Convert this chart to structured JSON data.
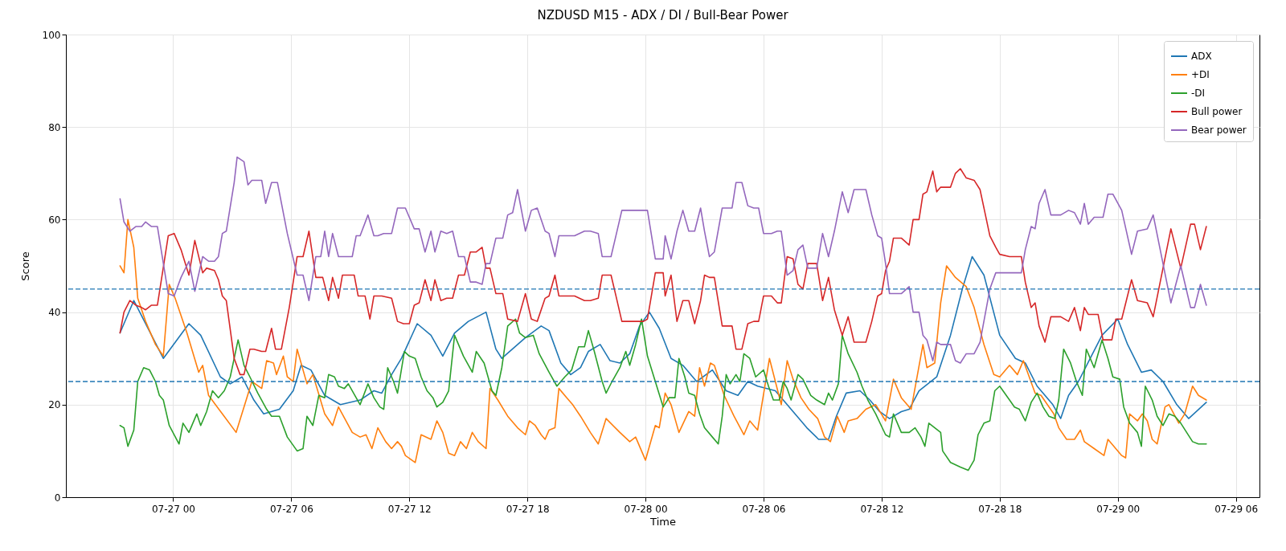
{
  "chart_data": {
    "type": "line",
    "title": "NZDUSD M15 - ADX / DI / Bull-Bear Power",
    "xlabel": "Time",
    "ylabel": "Score",
    "legend": "top right",
    "grid": true,
    "xlim": [
      "--07-26T18:33",
      "--07-29T07:12"
    ],
    "ylim": [
      0,
      100
    ],
    "yticks": [
      0,
      20,
      40,
      60,
      80,
      100
    ],
    "xticks": [
      {
        "value": "--07-27T00:00",
        "label": "07-27 00"
      },
      {
        "value": "--07-27T06:00",
        "label": "07-27 06"
      },
      {
        "value": "--07-27T12:00",
        "label": "07-27 12"
      },
      {
        "value": "--07-27T18:00",
        "label": "07-27 18"
      },
      {
        "value": "--07-28T00:00",
        "label": "07-28 00"
      },
      {
        "value": "--07-28T06:00",
        "label": "07-28 06"
      },
      {
        "value": "--07-28T12:00",
        "label": "07-28 12"
      },
      {
        "value": "--07-28T18:00",
        "label": "07-28 18"
      },
      {
        "value": "--07-29T00:00",
        "label": "07-29 00"
      },
      {
        "value": "--07-29T06:00",
        "label": "07-29 06"
      }
    ],
    "ref_lines": [
      {
        "axis": "y",
        "value": 45,
        "color": "#1f77b4",
        "line_style": "dashed"
      },
      {
        "axis": "y",
        "value": 25,
        "color": "#1f77b4",
        "line_style": "dashed"
      }
    ],
    "series": [
      {
        "name": "ADX",
        "color": "#1f77b4",
        "x": [
          "--07-26T21:18",
          "--07-26T22:00",
          "--07-26T23:30",
          "--07-27T00:48",
          "--07-27T01:24",
          "--07-27T02:24",
          "--07-27T02:54",
          "--07-27T03:30",
          "--07-27T04:06",
          "--07-27T04:36",
          "--07-27T05:24",
          "--07-27T06:06",
          "--07-27T06:30",
          "--07-27T07:00",
          "--07-27T07:42",
          "--07-27T08:30",
          "--07-27T09:30",
          "--07-27T10:12",
          "--07-27T10:36",
          "--07-27T11:06",
          "--07-27T11:36",
          "--07-27T12:24",
          "--07-27T13:06",
          "--07-27T13:42",
          "--07-27T14:18",
          "--07-27T15:00",
          "--07-27T15:54",
          "--07-27T16:24",
          "--07-27T16:42",
          "--07-27T17:54",
          "--07-27T18:42",
          "--07-27T19:06",
          "--07-27T19:42",
          "--07-27T20:12",
          "--07-27T20:42",
          "--07-27T21:06",
          "--07-27T21:42",
          "--07-27T22:12",
          "--07-27T22:42",
          "--07-27T23:12",
          "--07-27T23:42",
          "--07-28T00:12",
          "--07-28T00:42",
          "--07-28T01:18",
          "--07-28T01:54",
          "--07-28T02:36",
          "--07-28T03:24",
          "--07-28T04:06",
          "--07-28T04:42",
          "--07-28T05:12",
          "--07-28T05:42",
          "--07-28T06:36",
          "--07-28T07:12",
          "--07-28T07:48",
          "--07-28T08:12",
          "--07-28T08:48",
          "--07-28T09:18",
          "--07-28T09:42",
          "--07-28T10:12",
          "--07-28T10:54",
          "--07-28T11:24",
          "--07-28T11:54",
          "--07-28T12:24",
          "--07-28T13:00",
          "--07-28T13:24",
          "--07-28T13:54",
          "--07-28T14:48",
          "--07-28T15:30",
          "--07-28T16:06",
          "--07-28T16:36",
          "--07-28T17:12",
          "--07-28T18:00",
          "--07-28T18:48",
          "--07-28T19:18",
          "--07-28T19:54",
          "--07-28T20:42",
          "--07-28T21:06",
          "--07-28T21:30",
          "--07-28T22:00",
          "--07-28T22:36",
          "--07-28T23:12",
          "--07-29T00:00",
          "--07-29T00:30",
          "--07-29T01:12",
          "--07-29T01:42",
          "--07-29T02:18",
          "--07-29T03:00",
          "--07-29T03:36",
          "--07-29T04:30"
        ],
        "values": [
          35.5,
          42.5,
          30,
          37.5,
          35,
          26,
          24.5,
          26,
          21,
          18,
          19,
          23,
          28.5,
          27.5,
          22,
          20,
          21,
          23,
          22.5,
          26.5,
          30,
          37.5,
          35,
          30.5,
          35.5,
          38,
          40,
          32,
          30,
          34.5,
          37,
          36,
          29,
          26.5,
          28,
          31.5,
          33,
          29.5,
          29,
          31,
          37,
          40,
          36.5,
          30,
          28.5,
          25,
          27.5,
          23,
          22,
          25,
          24,
          23,
          20,
          17,
          15,
          12.5,
          12.5,
          17.5,
          22.5,
          23,
          21,
          18.5,
          17,
          18.5,
          19,
          23,
          26,
          35,
          45,
          52,
          48,
          35,
          30,
          29,
          24,
          20,
          17,
          22,
          25,
          30,
          35,
          38.5,
          33,
          27,
          27.5,
          25,
          20,
          17,
          20.5
        ]
      },
      {
        "name": "+DI",
        "color": "#ff7f0e",
        "x": [
          "--07-26T21:18",
          "--07-26T21:30",
          "--07-26T21:42",
          "--07-26T22:00",
          "--07-26T22:12",
          "--07-26T22:36",
          "--07-26T23:06",
          "--07-26T23:30",
          "--07-26T23:48",
          "--07-27T00:06",
          "--07-27T00:42",
          "--07-27T01:18",
          "--07-27T01:30",
          "--07-27T01:48",
          "--07-27T02:30",
          "--07-27T03:12",
          "--07-27T03:36",
          "--07-27T04:00",
          "--07-27T04:30",
          "--07-27T04:45",
          "--07-27T05:06",
          "--07-27T05:15",
          "--07-27T05:36",
          "--07-27T05:48",
          "--07-27T06:06",
          "--07-27T06:18",
          "--07-27T06:48",
          "--07-27T07:06",
          "--07-27T07:42",
          "--07-27T08:06",
          "--07-27T08:24",
          "--07-27T09:06",
          "--07-27T09:30",
          "--07-27T09:48",
          "--07-27T10:06",
          "--07-27T10:24",
          "--07-27T10:48",
          "--07-27T11:06",
          "--07-27T11:24",
          "--07-27T11:36",
          "--07-27T11:48",
          "--07-27T12:18",
          "--07-27T12:36",
          "--07-27T13:06",
          "--07-27T13:24",
          "--07-27T13:42",
          "--07-27T14:00",
          "--07-27T14:18",
          "--07-27T14:36",
          "--07-27T14:54",
          "--07-27T15:12",
          "--07-27T15:30",
          "--07-27T15:54",
          "--07-27T16:06",
          "--07-27T16:30",
          "--07-27T17:00",
          "--07-27T17:30",
          "--07-27T17:54",
          "--07-27T18:06",
          "--07-27T18:24",
          "--07-27T18:42",
          "--07-27T18:54",
          "--07-27T19:06",
          "--07-27T19:24",
          "--07-27T19:36",
          "--07-27T20:00",
          "--07-27T20:18",
          "--07-27T20:42",
          "--07-27T21:12",
          "--07-27T21:36",
          "--07-27T22:00",
          "--07-27T22:42",
          "--07-27T23:12",
          "--07-27T23:30",
          "--07-28T00:00",
          "--07-28T00:30",
          "--07-28T00:42",
          "--07-28T01:00",
          "--07-28T01:18",
          "--07-28T01:42",
          "--07-28T02:12",
          "--07-28T02:30",
          "--07-28T02:45",
          "--07-28T03:00",
          "--07-28T03:18",
          "--07-28T03:30",
          "--07-28T04:00",
          "--07-28T04:30",
          "--07-28T05:00",
          "--07-28T05:18",
          "--07-28T05:42",
          "--07-28T06:18",
          "--07-28T06:36",
          "--07-28T06:54",
          "--07-28T07:12",
          "--07-28T07:30",
          "--07-28T07:54",
          "--07-28T08:18",
          "--07-28T08:45",
          "--07-28T09:06",
          "--07-28T09:24",
          "--07-28T09:45",
          "--07-28T10:06",
          "--07-28T10:18",
          "--07-28T10:45",
          "--07-28T11:12",
          "--07-28T11:42",
          "--07-28T12:12",
          "--07-28T12:36",
          "--07-28T13:00",
          "--07-28T13:30",
          "--07-28T14:06",
          "--07-28T14:18",
          "--07-28T14:42",
          "--07-28T15:00",
          "--07-28T15:18",
          "--07-28T15:45",
          "--07-28T16:18",
          "--07-28T16:42",
          "--07-28T17:12",
          "--07-28T17:42",
          "--07-28T18:00",
          "--07-28T18:30",
          "--07-28T18:54",
          "--07-28T19:12",
          "--07-28T19:48",
          "--07-28T20:06",
          "--07-28T20:45",
          "--07-28T21:00",
          "--07-28T21:24",
          "--07-28T21:48",
          "--07-28T22:06",
          "--07-28T22:18",
          "--07-28T22:48",
          "--07-28T23:18",
          "--07-28T23:30",
          "--07-29T00:12",
          "--07-29T00:24",
          "--07-29T00:36",
          "--07-29T01:00",
          "--07-29T01:15",
          "--07-29T01:30",
          "--07-29T01:45",
          "--07-29T02:00",
          "--07-29T02:24",
          "--07-29T02:36",
          "--07-29T03:06",
          "--07-29T03:24",
          "--07-29T03:48",
          "--07-29T04:06",
          "--07-29T04:30"
        ],
        "values": [
          50,
          48.5,
          60,
          54,
          43,
          38,
          33,
          30.5,
          46,
          43,
          35.5,
          27,
          28.5,
          22,
          18,
          14,
          19.5,
          25,
          23.5,
          29.5,
          29,
          26.5,
          30.5,
          26,
          25,
          32,
          24.5,
          26.5,
          18,
          15.5,
          19.5,
          14,
          13,
          13.5,
          10.5,
          15,
          12,
          10.5,
          12,
          11,
          9,
          7.5,
          13.5,
          12.5,
          16.5,
          14,
          9.5,
          9,
          12,
          10.5,
          14,
          12,
          10.5,
          23.5,
          21,
          17.5,
          15,
          13.5,
          16.5,
          15.5,
          13.5,
          12.5,
          14.5,
          15,
          23.5,
          21.5,
          20,
          17.5,
          14,
          11.5,
          17,
          14,
          12,
          13,
          8,
          15.5,
          15,
          22.5,
          20,
          14,
          18.5,
          17.5,
          28,
          24,
          29,
          28.5,
          22,
          17.5,
          13.5,
          16.5,
          14.5,
          30,
          25,
          20,
          29.5,
          25.5,
          21.5,
          19,
          17,
          13,
          12,
          17.5,
          14,
          16.5,
          17,
          19,
          20,
          16.5,
          25.5,
          21.5,
          19,
          33,
          28,
          29,
          42,
          50,
          47.5,
          45.5,
          41,
          33,
          26.5,
          26,
          28.5,
          26.5,
          29.5,
          22.5,
          22,
          18,
          15,
          12.5,
          12.5,
          14.5,
          12,
          10.5,
          9,
          12.5,
          9,
          8.5,
          18,
          16.5,
          18,
          16.5,
          12.5,
          11.5,
          19.5,
          20,
          16,
          18,
          24,
          22,
          21
        ]
      },
      {
        "name": "-DI",
        "color": "#2ca02c",
        "x": [
          "--07-26T21:18",
          "--07-26T21:30",
          "--07-26T21:42",
          "--07-26T22:00",
          "--07-26T22:12",
          "--07-26T22:30",
          "--07-26T22:48",
          "--07-26T23:06",
          "--07-26T23:18",
          "--07-26T23:30",
          "--07-26T23:48",
          "--07-27T00:18",
          "--07-27T00:30",
          "--07-27T00:48",
          "--07-27T01:12",
          "--07-27T01:24",
          "--07-27T01:42",
          "--07-27T02:00",
          "--07-27T02:18",
          "--07-27T02:36",
          "--07-27T02:54",
          "--07-27T03:18",
          "--07-27T03:36",
          "--07-27T03:54",
          "--07-27T04:18",
          "--07-27T04:45",
          "--07-27T05:00",
          "--07-27T05:24",
          "--07-27T05:48",
          "--07-27T06:18",
          "--07-27T06:36",
          "--07-27T06:48",
          "--07-27T07:06",
          "--07-27T07:24",
          "--07-27T07:42",
          "--07-27T07:54",
          "--07-27T08:12",
          "--07-27T08:24",
          "--07-27T08:42",
          "--07-27T08:54",
          "--07-27T09:30",
          "--07-27T09:54",
          "--07-27T10:12",
          "--07-27T10:30",
          "--07-27T10:42",
          "--07-27T10:54",
          "--07-27T11:12",
          "--07-27T11:24",
          "--07-27T11:45",
          "--07-27T12:00",
          "--07-27T12:18",
          "--07-27T12:36",
          "--07-27T12:54",
          "--07-27T13:12",
          "--07-27T13:24",
          "--07-27T13:42",
          "--07-27T14:00",
          "--07-27T14:18",
          "--07-27T14:45",
          "--07-27T15:12",
          "--07-27T15:24",
          "--07-27T15:48",
          "--07-27T16:00",
          "--07-27T16:12",
          "--07-27T16:24",
          "--07-27T16:42",
          "--07-27T17:00",
          "--07-27T17:24",
          "--07-27T17:36",
          "--07-27T17:54",
          "--07-27T18:18",
          "--07-27T18:36",
          "--07-27T19:06",
          "--07-27T19:30",
          "--07-27T19:54",
          "--07-27T20:15",
          "--07-27T20:36",
          "--07-27T20:54",
          "--07-27T21:06",
          "--07-27T21:24",
          "--07-27T21:48",
          "--07-27T22:00",
          "--07-27T22:18",
          "--07-27T22:42",
          "--07-27T23:00",
          "--07-27T23:12",
          "--07-27T23:30",
          "--07-27T23:48",
          "--07-28T00:06",
          "--07-28T00:30",
          "--07-28T00:54",
          "--07-28T01:12",
          "--07-28T01:30",
          "--07-28T01:42",
          "--07-28T02:00",
          "--07-28T02:12",
          "--07-28T02:30",
          "--07-28T02:45",
          "--07-28T03:00",
          "--07-28T03:24",
          "--07-28T03:42",
          "--07-28T03:54",
          "--07-28T04:06",
          "--07-28T04:18",
          "--07-28T04:36",
          "--07-28T04:48",
          "--07-28T05:00",
          "--07-28T05:18",
          "--07-28T05:36",
          "--07-28T06:00",
          "--07-28T06:15",
          "--07-28T06:30",
          "--07-28T06:48",
          "--07-28T07:00",
          "--07-28T07:12",
          "--07-28T07:24",
          "--07-28T07:45",
          "--07-28T08:00",
          "--07-28T08:24",
          "--07-28T08:42",
          "--07-28T09:06",
          "--07-28T09:18",
          "--07-28T09:30",
          "--07-28T09:48",
          "--07-28T10:00",
          "--07-28T10:18",
          "--07-28T10:45",
          "--07-28T11:00",
          "--07-28T11:18",
          "--07-28T11:42",
          "--07-28T12:12",
          "--07-28T12:24",
          "--07-28T12:36",
          "--07-28T13:00",
          "--07-28T13:24",
          "--07-28T13:42",
          "--07-28T14:00",
          "--07-28T14:12",
          "--07-28T14:24",
          "--07-28T14:42",
          "--07-28T15:00",
          "--07-28T15:06",
          "--07-28T15:30",
          "--07-28T16:00",
          "--07-28T16:24",
          "--07-28T16:42",
          "--07-28T16:54",
          "--07-28T17:12",
          "--07-28T17:30",
          "--07-28T17:45",
          "--07-28T18:00",
          "--07-28T18:30",
          "--07-28T18:45",
          "--07-28T19:00",
          "--07-28T19:18",
          "--07-28T19:36",
          "--07-28T19:54",
          "--07-28T20:12",
          "--07-28T20:30",
          "--07-28T20:48",
          "--07-28T21:00",
          "--07-28T21:15",
          "--07-28T21:36",
          "--07-28T21:54",
          "--07-28T22:12",
          "--07-28T22:24",
          "--07-28T22:48",
          "--07-28T23:12",
          "--07-28T23:30",
          "--07-28T23:45",
          "--07-29T00:06",
          "--07-29T00:18",
          "--07-29T00:36",
          "--07-29T01:00",
          "--07-29T01:12",
          "--07-29T01:24",
          "--07-29T01:45",
          "--07-29T02:00",
          "--07-29T02:18",
          "--07-29T02:36",
          "--07-29T02:54",
          "--07-29T03:12",
          "--07-29T03:48",
          "--07-29T04:06",
          "--07-29T04:30"
        ],
        "values": [
          15.5,
          15,
          11,
          14.5,
          25,
          28,
          27.5,
          25,
          22,
          21,
          15.5,
          11.5,
          16,
          14,
          18,
          15.5,
          18.5,
          23,
          21.5,
          23,
          26,
          34,
          28.5,
          26,
          22.5,
          19,
          17.5,
          17.5,
          13,
          10,
          10.5,
          17.5,
          15.5,
          22,
          21.5,
          26.5,
          26,
          24,
          23.5,
          24.5,
          20,
          24.5,
          21.5,
          19.5,
          19,
          28,
          25,
          22.5,
          31.5,
          30.5,
          30,
          26,
          23,
          21.5,
          19.5,
          20.5,
          23,
          35,
          30.5,
          27,
          31.5,
          29,
          26,
          23,
          22,
          28,
          37,
          38.5,
          35.5,
          34.5,
          35,
          31,
          27,
          24,
          26,
          27.5,
          32.5,
          32.5,
          36,
          31.5,
          25,
          22.5,
          25,
          28,
          31.5,
          28.5,
          33,
          38.5,
          30.5,
          25,
          19.5,
          21.5,
          21.5,
          30,
          26,
          22.5,
          22,
          18,
          15,
          13,
          11.5,
          17.5,
          26.5,
          24.5,
          26.5,
          25,
          31,
          30,
          26,
          27.5,
          24,
          21,
          21,
          25,
          23.5,
          21,
          26.5,
          25.5,
          22,
          21,
          20,
          22.5,
          21,
          24.5,
          35,
          31,
          27,
          24,
          21,
          18,
          13.5,
          13,
          18,
          14,
          14,
          15,
          13,
          11,
          16,
          15,
          14,
          10,
          7.5,
          6.5,
          5.8,
          8,
          13.5,
          16,
          16.5,
          23,
          24,
          21,
          19.5,
          19,
          16.5,
          20.5,
          22.5,
          19.5,
          17.5,
          17,
          21,
          32,
          29,
          25,
          22,
          32,
          28,
          34,
          30,
          26,
          25.5,
          19.5,
          16,
          14,
          11,
          24,
          21,
          17.5,
          15.5,
          18,
          17.5,
          16,
          12,
          11.5,
          11.5
        ]
      },
      {
        "name": "Bull power",
        "color": "#d62728",
        "x": [
          "--07-26T21:18",
          "--07-26T21:30",
          "--07-26T21:48",
          "--07-26T22:06",
          "--07-26T22:24",
          "--07-26T22:36",
          "--07-26T22:54",
          "--07-26T23:12",
          "--07-26T23:45",
          "--07-27T00:03",
          "--07-27T00:24",
          "--07-27T00:48",
          "--07-27T01:06",
          "--07-27T01:30",
          "--07-27T01:42",
          "--07-27T02:06",
          "--07-27T02:18",
          "--07-27T02:30",
          "--07-27T02:42",
          "--07-27T03:06",
          "--07-27T03:24",
          "--07-27T03:36",
          "--07-27T03:54",
          "--07-27T04:06",
          "--07-27T04:30",
          "--07-27T04:42",
          "--07-27T05:00",
          "--07-27T05:12",
          "--07-27T05:30",
          "--07-27T05:54",
          "--07-27T06:18",
          "--07-27T06:36",
          "--07-27T06:54",
          "--07-27T07:15",
          "--07-27T07:36",
          "--07-27T07:54",
          "--07-27T08:06",
          "--07-27T08:24",
          "--07-27T08:36",
          "--07-27T09:12",
          "--07-27T09:24",
          "--07-27T09:45",
          "--07-27T10:00",
          "--07-27T10:12",
          "--07-27T10:36",
          "--07-27T11:06",
          "--07-27T11:24",
          "--07-27T11:42",
          "--07-27T12:00",
          "--07-27T12:15",
          "--07-27T12:30",
          "--07-27T12:48",
          "--07-27T13:06",
          "--07-27T13:18",
          "--07-27T13:36",
          "--07-27T13:54",
          "--07-27T14:12",
          "--07-27T14:30",
          "--07-27T14:48",
          "--07-27T15:06",
          "--07-27T15:24",
          "--07-27T15:42",
          "--07-27T15:54",
          "--07-27T16:06",
          "--07-27T16:24",
          "--07-27T16:45",
          "--07-27T17:00",
          "--07-27T17:30",
          "--07-27T17:54",
          "--07-27T18:12",
          "--07-27T18:30",
          "--07-27T18:54",
          "--07-27T19:06",
          "--07-27T19:24",
          "--07-27T19:36",
          "--07-27T20:24",
          "--07-27T20:54",
          "--07-27T21:12",
          "--07-27T21:36",
          "--07-27T21:48",
          "--07-27T22:15",
          "--07-27T22:30",
          "--07-27T22:48",
          "--07-27T23:54",
          "--07-28T00:06",
          "--07-28T00:30",
          "--07-28T00:54",
          "--07-28T01:00",
          "--07-28T01:18",
          "--07-28T01:36",
          "--07-28T01:54",
          "--07-28T02:12",
          "--07-28T02:30",
          "--07-28T02:48",
          "--07-28T03:00",
          "--07-28T03:15",
          "--07-28T03:30",
          "--07-28T03:54",
          "--07-28T04:24",
          "--07-28T04:36",
          "--07-28T04:54",
          "--07-28T05:12",
          "--07-28T05:30",
          "--07-28T05:45",
          "--07-28T06:00",
          "--07-28T06:24",
          "--07-28T06:42",
          "--07-28T06:54",
          "--07-28T07:12",
          "--07-28T07:30",
          "--07-28T07:45",
          "--07-28T08:00",
          "--07-28T08:15",
          "--07-28T08:42",
          "--07-28T09:00",
          "--07-28T09:18",
          "--07-28T09:36",
          "--07-28T10:00",
          "--07-28T10:18",
          "--07-28T10:36",
          "--07-28T11:12",
          "--07-28T11:30",
          "--07-28T11:48",
          "--07-28T12:00",
          "--07-28T12:12",
          "--07-28T12:24",
          "--07-28T12:36",
          "--07-28T13:00",
          "--07-28T13:24",
          "--07-28T13:36",
          "--07-28T13:54",
          "--07-28T14:06",
          "--07-28T14:18",
          "--07-28T14:36",
          "--07-28T14:48",
          "--07-28T15:00",
          "--07-28T15:30",
          "--07-28T15:45",
          "--07-28T16:00",
          "--07-28T16:18",
          "--07-28T16:42",
          "--07-28T17:00",
          "--07-28T17:30",
          "--07-28T17:48",
          "--07-28T18:00",
          "--07-28T18:30",
          "--07-28T19:06",
          "--07-28T19:18",
          "--07-28T19:36",
          "--07-28T19:48",
          "--07-28T20:00",
          "--07-28T20:18",
          "--07-28T20:36",
          "--07-28T21:06",
          "--07-28T21:30",
          "--07-28T21:48",
          "--07-28T22:06",
          "--07-28T22:18",
          "--07-28T22:30",
          "--07-28T23:00",
          "--07-28T23:15",
          "--07-28T23:42",
          "--07-28T23:54",
          "--07-29T00:12",
          "--07-29T00:42",
          "--07-29T01:00",
          "--07-29T01:30",
          "--07-29T01:48",
          "--07-29T02:42",
          "--07-29T03:12",
          "--07-29T03:42",
          "--07-29T03:54",
          "--07-29T04:12",
          "--07-29T04:30"
        ],
        "values": [
          35.5,
          40,
          42.5,
          41.5,
          41,
          40.5,
          41.5,
          41.5,
          56.5,
          57,
          53.5,
          48,
          55.5,
          48.5,
          49.5,
          49,
          47,
          43.5,
          42.5,
          30,
          26.5,
          26.5,
          32,
          32,
          31.5,
          31.5,
          36.5,
          32,
          32,
          41,
          52,
          52,
          57.5,
          47.5,
          47.5,
          42.5,
          47.5,
          43,
          48,
          48,
          43.5,
          43.5,
          38.5,
          43.5,
          43.5,
          43,
          38,
          37.5,
          37.5,
          41.5,
          42,
          47,
          42.5,
          47,
          42.5,
          43,
          43,
          48,
          48,
          53,
          53,
          54,
          49.5,
          49.5,
          44,
          44,
          38.5,
          38,
          44,
          38.5,
          38,
          43,
          43.5,
          48,
          43.5,
          43.5,
          42.5,
          42.5,
          43,
          48,
          48,
          43.5,
          38,
          38,
          38.5,
          48.5,
          48.5,
          43.5,
          48,
          38,
          42.5,
          42.5,
          37.5,
          42.5,
          48,
          47.5,
          47.5,
          37,
          37,
          32,
          32,
          37.5,
          38,
          38,
          43.5,
          43.5,
          42,
          42,
          52,
          51.5,
          46,
          45,
          50.5,
          50.5,
          42.5,
          47.5,
          40.5,
          35,
          39,
          33.5,
          33.5,
          38,
          43.5,
          44,
          49,
          51,
          56,
          56,
          54.5,
          60,
          60,
          65.5,
          66,
          70.5,
          66,
          67,
          67,
          70,
          71,
          69,
          68.5,
          66.5,
          56.5,
          54,
          52.5,
          52,
          52,
          46.5,
          41,
          42,
          37,
          33.5,
          39,
          39,
          38,
          41,
          36,
          41,
          39.5,
          39.5,
          34,
          34,
          38.5,
          38.5,
          47,
          42.5,
          42,
          39,
          58,
          49.5,
          59,
          59,
          53.5,
          58.5
        ]
      },
      {
        "name": "Bear power",
        "color": "#9467bd",
        "x": [
          "--07-26T21:18",
          "--07-26T21:30",
          "--07-26T21:48",
          "--07-26T22:06",
          "--07-26T22:24",
          "--07-26T22:36",
          "--07-26T22:54",
          "--07-26T23:12",
          "--07-26T23:45",
          "--07-27T00:03",
          "--07-27T00:24",
          "--07-27T00:48",
          "--07-27T01:06",
          "--07-27T01:30",
          "--07-27T01:48",
          "--07-27T02:06",
          "--07-27T02:18",
          "--07-27T02:30",
          "--07-27T02:42",
          "--07-27T03:06",
          "--07-27T03:15",
          "--07-27T03:36",
          "--07-27T03:48",
          "--07-27T04:00",
          "--07-27T04:30",
          "--07-27T04:42",
          "--07-27T05:00",
          "--07-27T05:18",
          "--07-27T05:48",
          "--07-27T06:18",
          "--07-27T06:36",
          "--07-27T06:54",
          "--07-27T07:15",
          "--07-27T07:30",
          "--07-27T07:42",
          "--07-27T07:54",
          "--07-27T08:06",
          "--07-27T08:24",
          "--07-27T09:06",
          "--07-27T09:18",
          "--07-27T09:30",
          "--07-27T09:54",
          "--07-27T10:12",
          "--07-27T10:24",
          "--07-27T10:42",
          "--07-27T11:06",
          "--07-27T11:24",
          "--07-27T11:48",
          "--07-27T12:15",
          "--07-27T12:30",
          "--07-27T12:48",
          "--07-27T13:06",
          "--07-27T13:18",
          "--07-27T13:36",
          "--07-27T13:54",
          "--07-27T14:12",
          "--07-27T14:30",
          "--07-27T14:48",
          "--07-27T15:06",
          "--07-27T15:24",
          "--07-27T15:42",
          "--07-27T15:54",
          "--07-27T16:06",
          "--07-27T16:24",
          "--07-27T16:45",
          "--07-27T17:00",
          "--07-27T17:15",
          "--07-27T17:30",
          "--07-27T17:54",
          "--07-27T18:12",
          "--07-27T18:30",
          "--07-27T18:54",
          "--07-27T19:06",
          "--07-27T19:24",
          "--07-27T19:36",
          "--07-27T20:24",
          "--07-27T20:54",
          "--07-27T21:12",
          "--07-27T21:36",
          "--07-27T21:48",
          "--07-27T22:15",
          "--07-27T22:48",
          "--07-27T23:54",
          "--07-28T00:06",
          "--07-28T00:30",
          "--07-28T00:54",
          "--07-28T01:00",
          "--07-28T01:18",
          "--07-28T01:36",
          "--07-28T01:54",
          "--07-28T02:12",
          "--07-28T02:30",
          "--07-28T02:48",
          "--07-28T03:00",
          "--07-28T03:15",
          "--07-28T03:30",
          "--07-28T03:54",
          "--07-28T04:24",
          "--07-28T04:36",
          "--07-28T04:54",
          "--07-28T05:12",
          "--07-28T05:30",
          "--07-28T05:45",
          "--07-28T06:00",
          "--07-28T06:24",
          "--07-28T06:42",
          "--07-28T06:54",
          "--07-28T07:12",
          "--07-28T07:30",
          "--07-28T07:45",
          "--07-28T08:00",
          "--07-28T08:15",
          "--07-28T08:42",
          "--07-28T09:00",
          "--07-28T09:18",
          "--07-28T09:36",
          "--07-28T10:00",
          "--07-28T10:18",
          "--07-28T10:36",
          "--07-28T11:12",
          "--07-28T11:30",
          "--07-28T11:48",
          "--07-28T12:00",
          "--07-28T12:12",
          "--07-28T12:24",
          "--07-28T13:00",
          "--07-28T13:24",
          "--07-28T13:36",
          "--07-28T13:54",
          "--07-28T14:06",
          "--07-28T14:18",
          "--07-28T14:36",
          "--07-28T14:48",
          "--07-28T15:00",
          "--07-28T15:30",
          "--07-28T15:45",
          "--07-28T16:00",
          "--07-28T16:18",
          "--07-28T16:42",
          "--07-28T17:00",
          "--07-28T17:30",
          "--07-28T17:48",
          "--07-28T18:30",
          "--07-28T19:06",
          "--07-28T19:18",
          "--07-28T19:36",
          "--07-28T19:48",
          "--07-28T20:00",
          "--07-28T20:18",
          "--07-28T20:36",
          "--07-28T21:06",
          "--07-28T21:30",
          "--07-28T21:48",
          "--07-28T22:06",
          "--07-28T22:18",
          "--07-28T22:30",
          "--07-28T22:48",
          "--07-28T23:15",
          "--07-28T23:30",
          "--07-28T23:45",
          "--07-29T00:12",
          "--07-29T00:42",
          "--07-29T01:00",
          "--07-29T01:30",
          "--07-29T01:48",
          "--07-29T02:42",
          "--07-29T03:12",
          "--07-29T03:42",
          "--07-29T03:54",
          "--07-29T04:12",
          "--07-29T04:30"
        ],
        "values": [
          64.5,
          59.5,
          57.5,
          58.5,
          58.5,
          59.5,
          58.5,
          58.5,
          44,
          43.5,
          47.5,
          51,
          44.5,
          52,
          51,
          51,
          52,
          57,
          57.5,
          68,
          73.5,
          72.5,
          67.5,
          68.5,
          68.5,
          63.5,
          68,
          68,
          57,
          48,
          48,
          42.5,
          52,
          52,
          57.5,
          52,
          57,
          52,
          52,
          56.5,
          56.5,
          61,
          56.5,
          56.5,
          57,
          57,
          62.5,
          62.5,
          58,
          58,
          53,
          57.5,
          53,
          57.5,
          57,
          57.5,
          52,
          52,
          46.5,
          46.5,
          46,
          50.5,
          50.5,
          56,
          56,
          61,
          61.5,
          66.5,
          57.5,
          62,
          62.5,
          57.5,
          57,
          52,
          56.5,
          56.5,
          57.5,
          57.5,
          57,
          52,
          52,
          62,
          62,
          62,
          51.5,
          51.5,
          56.5,
          51.5,
          57.5,
          62,
          57.5,
          57.5,
          62.5,
          57.5,
          52,
          53,
          62.5,
          62.5,
          68,
          68,
          63,
          62.5,
          62.5,
          57,
          57,
          57.5,
          57.5,
          48,
          49,
          53.5,
          54.5,
          49.5,
          49.5,
          57,
          52,
          57.5,
          66,
          61.5,
          66.5,
          66.5,
          61,
          56.5,
          56,
          50.5,
          44,
          44,
          45.5,
          40,
          40,
          35,
          34,
          29.5,
          33.5,
          33,
          33,
          29.5,
          29,
          31,
          31,
          33.5,
          45,
          48.5,
          48.5,
          48.5,
          53.5,
          58.5,
          58,
          63.5,
          66.5,
          61,
          61,
          62,
          61.5,
          59,
          63.5,
          59,
          60.5,
          60.5,
          65.5,
          65.5,
          62,
          52.5,
          57.5,
          58,
          61,
          42,
          50,
          41,
          41,
          46,
          41.5
        ]
      }
    ]
  }
}
